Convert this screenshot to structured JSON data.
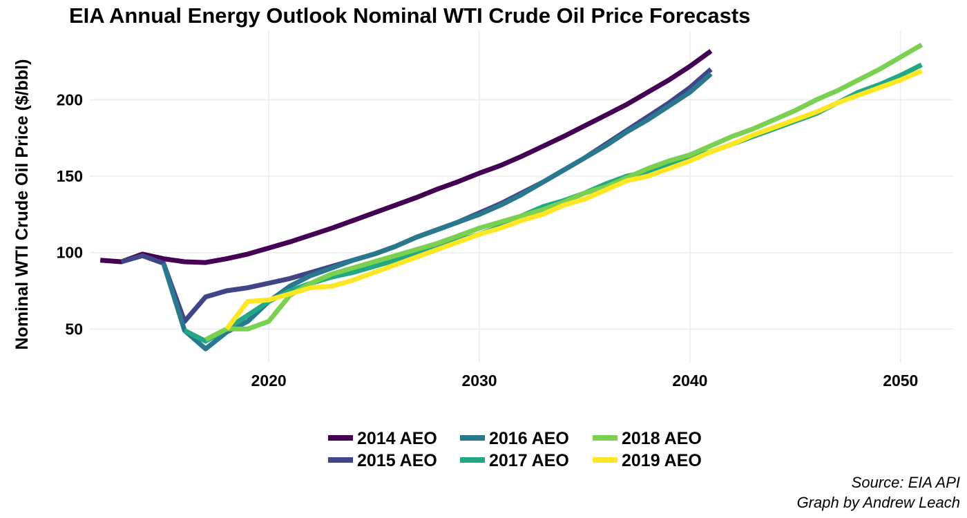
{
  "chart_data": {
    "type": "line",
    "title": "EIA Annual Energy Outlook Nominal WTI Crude Oil Price Forecasts",
    "xlabel": "",
    "ylabel": "Nominal WTI Crude Oil Price ($/bbl)",
    "xlim": [
      2011.5,
      2052.5
    ],
    "ylim": [
      28,
      245
    ],
    "x_ticks": [
      2020,
      2030,
      2040,
      2050
    ],
    "y_ticks": [
      50,
      100,
      150,
      200
    ],
    "grid": true,
    "legend_position": "bottom",
    "series": [
      {
        "name": "2014 AEO",
        "color": "#440154",
        "x": [
          2012,
          2013,
          2014,
          2015,
          2016,
          2017,
          2018,
          2019,
          2020,
          2021,
          2022,
          2023,
          2024,
          2025,
          2026,
          2027,
          2028,
          2029,
          2030,
          2031,
          2032,
          2033,
          2034,
          2035,
          2036,
          2037,
          2038,
          2039,
          2040,
          2041
        ],
        "y": [
          95,
          94,
          99,
          96,
          94,
          93.5,
          96,
          99,
          103,
          107,
          111.5,
          116,
          121,
          126,
          131,
          136,
          141.5,
          146.5,
          152,
          157,
          163,
          169.5,
          176,
          183,
          190,
          197,
          205,
          213,
          222,
          232
        ]
      },
      {
        "name": "2015 AEO",
        "color": "#414487",
        "x": [
          2013,
          2014,
          2015,
          2016,
          2017,
          2018,
          2019,
          2020,
          2021,
          2022,
          2023,
          2024,
          2025,
          2026,
          2027,
          2028,
          2029,
          2030,
          2031,
          2032,
          2033,
          2034,
          2035,
          2036,
          2037,
          2038,
          2039,
          2040,
          2041
        ],
        "y": [
          94,
          98,
          93,
          55,
          71,
          75,
          77,
          80,
          83,
          87,
          91,
          95,
          99,
          104,
          110,
          115,
          120,
          126,
          132,
          139,
          146,
          154,
          162,
          171,
          180,
          189,
          198,
          208,
          220
        ]
      },
      {
        "name": "2016 AEO",
        "color": "#2A788E",
        "x": [
          2015,
          2016,
          2017,
          2018,
          2019,
          2020,
          2021,
          2022,
          2023,
          2024,
          2025,
          2026,
          2027,
          2028,
          2029,
          2030,
          2031,
          2032,
          2033,
          2034,
          2035,
          2036,
          2037,
          2038,
          2039,
          2040,
          2041
        ],
        "y": [
          93,
          49,
          37,
          48,
          55,
          68,
          78,
          85,
          90,
          95,
          99,
          104,
          110,
          115,
          120,
          125,
          131,
          138,
          146,
          154,
          162,
          170,
          179,
          187,
          196,
          205,
          217
        ]
      },
      {
        "name": "2017 AEO",
        "color": "#22A884",
        "x": [
          2016,
          2017,
          2018,
          2019,
          2020,
          2021,
          2022,
          2023,
          2024,
          2025,
          2026,
          2027,
          2028,
          2029,
          2030,
          2031,
          2032,
          2033,
          2034,
          2035,
          2036,
          2037,
          2038,
          2039,
          2040,
          2041,
          2042,
          2043,
          2044,
          2045,
          2046,
          2047,
          2048,
          2049,
          2050,
          2051
        ],
        "y": [
          49,
          42,
          50,
          59,
          68,
          75,
          80,
          84,
          87,
          91,
          95,
          100,
          104,
          108,
          112,
          117,
          124,
          130,
          134,
          139,
          145,
          150,
          153,
          157,
          162,
          166,
          171,
          176,
          181,
          186,
          191,
          198,
          205,
          210,
          216,
          223
        ]
      },
      {
        "name": "2018 AEO",
        "color": "#7AD151",
        "x": [
          2017,
          2018,
          2019,
          2020,
          2021,
          2022,
          2023,
          2024,
          2025,
          2026,
          2027,
          2028,
          2029,
          2030,
          2031,
          2032,
          2033,
          2034,
          2035,
          2036,
          2037,
          2038,
          2039,
          2040,
          2041,
          2042,
          2043,
          2044,
          2045,
          2046,
          2047,
          2048,
          2049,
          2050,
          2051
        ],
        "y": [
          43,
          50,
          50,
          55,
          72,
          80,
          86,
          90,
          94,
          98,
          102,
          106,
          111,
          116,
          120,
          124,
          128,
          133,
          139,
          143,
          149,
          155,
          160,
          164,
          170,
          176,
          181,
          187,
          193,
          200,
          206,
          213,
          220,
          228,
          236
        ]
      },
      {
        "name": "2019 AEO",
        "color": "#FDE725",
        "x": [
          2018,
          2019,
          2020,
          2021,
          2022,
          2023,
          2024,
          2025,
          2026,
          2027,
          2028,
          2029,
          2030,
          2031,
          2032,
          2033,
          2034,
          2035,
          2036,
          2037,
          2038,
          2039,
          2040,
          2041,
          2042,
          2043,
          2044,
          2045,
          2046,
          2047,
          2048,
          2049,
          2050,
          2051
        ],
        "y": [
          50,
          68,
          69,
          73,
          77,
          78,
          82,
          87,
          92,
          97,
          102,
          107,
          112,
          116,
          121,
          125,
          131,
          135,
          141,
          147,
          150,
          155,
          160,
          166,
          171,
          177,
          182,
          187,
          192,
          198,
          203,
          208,
          213,
          219
        ]
      }
    ],
    "caption": [
      "Source: EIA API",
      "Graph by Andrew Leach"
    ]
  }
}
